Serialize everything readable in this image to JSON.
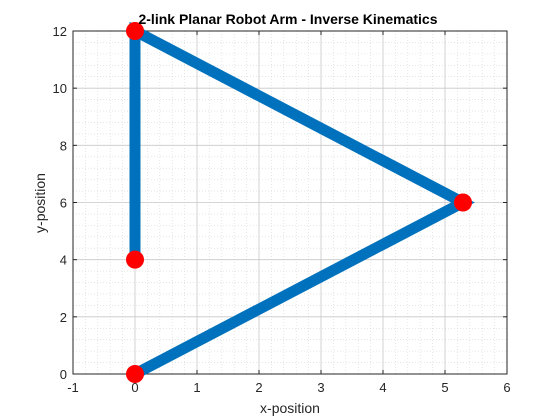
{
  "chart_data": {
    "type": "line",
    "title": "2-link Planar Robot Arm - Inverse Kinematics",
    "xlabel": "x-position",
    "ylabel": "y-position",
    "xlim": [
      -1,
      6
    ],
    "ylim": [
      0,
      12
    ],
    "xticks": [
      -1,
      0,
      1,
      2,
      3,
      4,
      5,
      6
    ],
    "yticks": [
      0,
      2,
      4,
      6,
      8,
      10,
      12
    ],
    "grid": true,
    "minor_grid": true,
    "series": [
      {
        "line_color": "#0072BD",
        "marker_color": "#FF0000",
        "points": [
          {
            "x": 0,
            "y": 0
          },
          {
            "x": 5.29,
            "y": 6
          },
          {
            "x": 0,
            "y": 12
          },
          {
            "x": 0,
            "y": 4
          }
        ]
      }
    ]
  }
}
